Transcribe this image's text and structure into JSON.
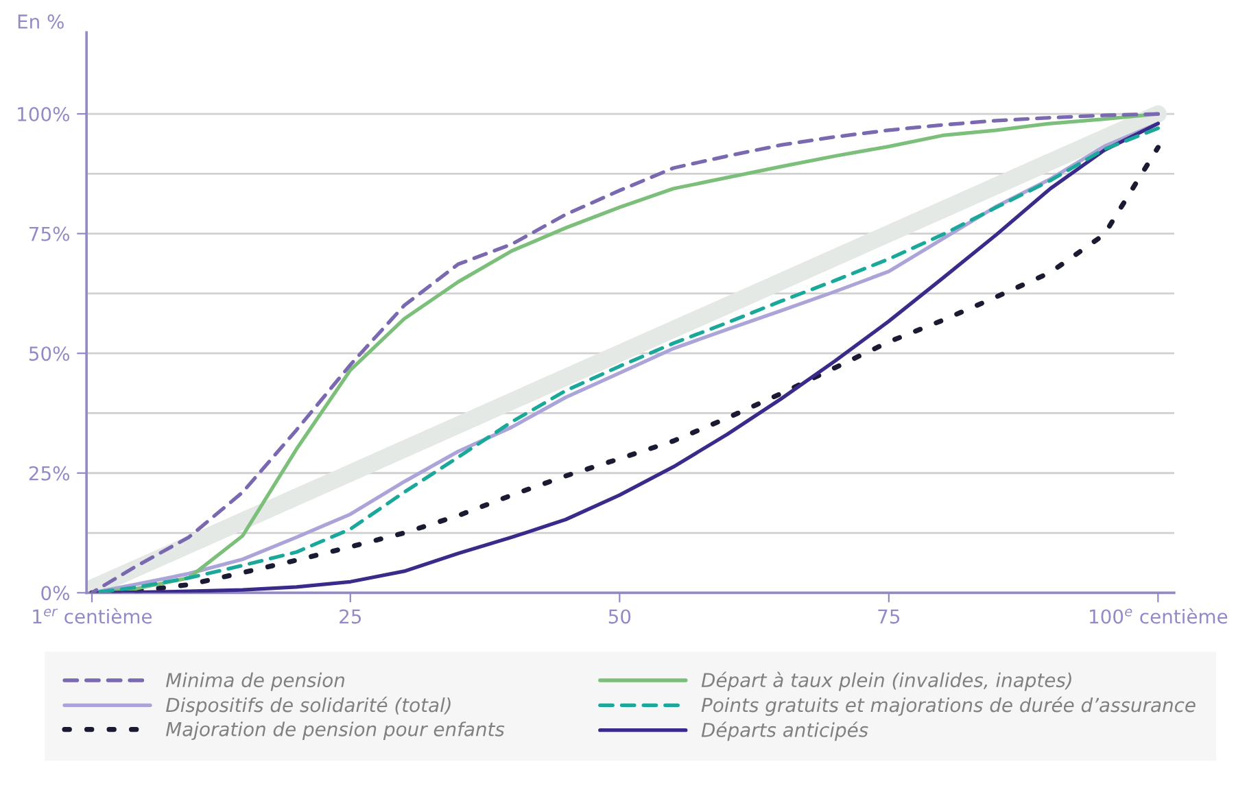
{
  "chart_data": {
    "type": "line",
    "ylabel": "En %",
    "x": [
      1,
      5,
      10,
      15,
      20,
      25,
      30,
      35,
      40,
      45,
      50,
      55,
      60,
      65,
      70,
      75,
      80,
      85,
      90,
      95,
      100
    ],
    "series": [
      {
        "color": "#e4e9e5",
        "x": [
          1,
          100
        ],
        "values": [
          1,
          100
        ],
        "line_style": "solid"
      },
      {
        "name": "Minima de pension",
        "color": "#7a68b0",
        "line_style": "dashed",
        "values": [
          0,
          5.4,
          11.6,
          21,
          34,
          47.6,
          60,
          68.6,
          72.8,
          79,
          84,
          88.7,
          91.2,
          93.5,
          95.2,
          96.6,
          97.7,
          98.6,
          99.2,
          99.7,
          100
        ]
      },
      {
        "name": "Dispositifs de solidarité (total)",
        "color": "#aaa4d8",
        "line_style": "solid",
        "values": [
          0,
          1.7,
          4,
          7,
          11.6,
          16.4,
          23.2,
          29.5,
          34.6,
          40.8,
          45.9,
          51,
          55,
          58.9,
          62.9,
          67.1,
          73.9,
          80.7,
          86.4,
          93.2,
          98
        ]
      },
      {
        "name": "Majoration de pension pour enfants",
        "color": "#1a1a33",
        "line_style": "dotted",
        "values": [
          0,
          0.3,
          1.7,
          4.2,
          6.8,
          9.6,
          12.5,
          16.1,
          20.4,
          24.4,
          28,
          31.7,
          36.5,
          41.6,
          47,
          52.4,
          56.9,
          61.8,
          66.9,
          74.8,
          93
        ]
      },
      {
        "name": "Départ à taux plein (invalides, inaptes)",
        "color": "#7cbf7a",
        "line_style": "solid",
        "values": [
          0,
          0.8,
          3.1,
          11.9,
          30,
          46.5,
          57.2,
          64.9,
          71.4,
          76.2,
          80.5,
          84.4,
          86.7,
          89,
          91.2,
          93.2,
          95.5,
          96.6,
          98,
          98.9,
          100
        ]
      },
      {
        "name": "Points gratuits et majorations de durée d’assurance",
        "color": "#1aa89a",
        "line_style": "dashed",
        "values": [
          0,
          1.1,
          3.1,
          5.7,
          8.5,
          13.3,
          21,
          28.3,
          35.7,
          42.2,
          47.3,
          52.1,
          56.4,
          60.9,
          65.2,
          69.7,
          74.8,
          80.5,
          86.1,
          92.6,
          97
        ]
      },
      {
        "name": "Départs anticipés",
        "color": "#3a2a8a",
        "line_style": "solid",
        "values": [
          0,
          0.1,
          0.3,
          0.6,
          1.2,
          2.3,
          4.5,
          8.2,
          11.6,
          15.3,
          20.4,
          26.3,
          33.1,
          40.5,
          48.4,
          56.7,
          65.7,
          74.8,
          84.4,
          92.4,
          98
        ]
      }
    ],
    "xlim": [
      0.5,
      101.5
    ],
    "xticks": [
      {
        "value": 1,
        "label": "1$^{er}$ centième"
      },
      25,
      50,
      75,
      {
        "value": 100,
        "label": "100$^{e}$ centième"
      }
    ],
    "ylim": [
      0,
      117
    ],
    "yticks": [
      {
        "value": 0,
        "label": "0%"
      },
      {
        "value": 12.5,
        "label": null
      },
      {
        "value": 25,
        "label": "25%"
      },
      {
        "value": 37.5,
        "label": null
      },
      {
        "value": 50,
        "label": "50%"
      },
      {
        "value": 62.5,
        "label": null
      },
      {
        "value": 75,
        "label": "75%"
      },
      {
        "value": 87.5,
        "label": null
      },
      {
        "value": 100,
        "label": "100%"
      }
    ],
    "grid": "y",
    "legend": "bottom",
    "marker": "none"
  }
}
